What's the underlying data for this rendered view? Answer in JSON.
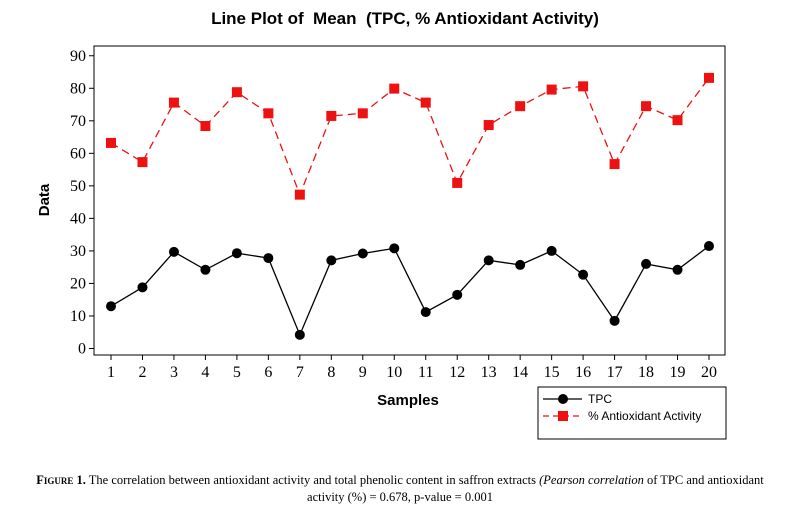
{
  "chart_data": {
    "type": "line",
    "title": "Line Plot of  Mean  (TPC, % Antioxidant Activity)",
    "xlabel": "Samples",
    "ylabel": "Data",
    "categories": [
      "1",
      "2",
      "3",
      "4",
      "5",
      "6",
      "7",
      "8",
      "9",
      "10",
      "11",
      "12",
      "13",
      "14",
      "15",
      "16",
      "17",
      "18",
      "19",
      "20"
    ],
    "ylim": [
      -2,
      93
    ],
    "yticks": [
      0,
      10,
      20,
      30,
      40,
      50,
      60,
      70,
      80,
      90
    ],
    "grid": false,
    "legend_position": "bottom-right, outside plot",
    "series": [
      {
        "name": "TPC",
        "color": "#000000",
        "marker": "circle",
        "line": "solid",
        "values": [
          13,
          18.8,
          29.7,
          24.2,
          29.3,
          27.8,
          4.2,
          27.1,
          29.2,
          30.8,
          11.2,
          16.5,
          27.1,
          25.7,
          30,
          22.7,
          8.5,
          26,
          24.2,
          31.5
        ]
      },
      {
        "name": "% Antioxidant Activity",
        "color": "#ee1111",
        "marker": "square",
        "line": "dashed",
        "values": [
          63.2,
          57.3,
          75.6,
          68.4,
          78.8,
          72.3,
          47.3,
          71.5,
          72.3,
          79.9,
          75.6,
          50.9,
          68.7,
          74.5,
          79.6,
          80.6,
          56.7,
          74.5,
          70.2,
          83.2
        ]
      }
    ]
  },
  "caption": {
    "figure_label": "Figure 1.",
    "text_before": " The correlation between antioxidant activity and total phenolic content in saffron extracts ",
    "italic": "(Pearson correlation",
    "text_after": " of TPC and antioxidant activity (%) = 0.678, p-value = 0.001"
  }
}
